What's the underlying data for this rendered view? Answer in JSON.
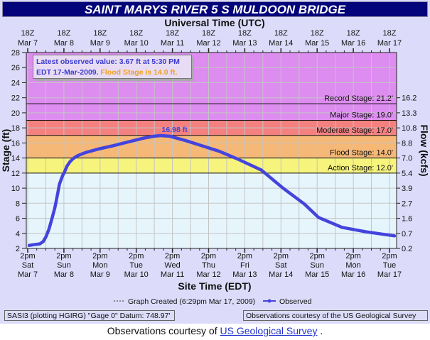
{
  "title": "SAINT MARYS RIVER 5 S MULDOON BRIDGE",
  "info": {
    "line1": "Latest observed value: 3.67 ft at 5:30 PM",
    "line2a": "EDT 17-Mar-2009.",
    "line2b": "Flood Stage is 14.0 ft."
  },
  "legend": {
    "created": "Graph Created (6:29pm Mar 17, 2009)",
    "observed": "Observed"
  },
  "footer": {
    "left": "SASI3 (plotting HGIRG)  \"Gage 0\" Datum: 748.97'",
    "right": "Observations courtesy of the  US Geological Survey"
  },
  "bottom": {
    "prefix": "Observations courtesy of ",
    "link": "US Geological Survey",
    "suffix": " ."
  },
  "chart_data": {
    "type": "line",
    "title": "SAINT MARYS RIVER 5 S MULDOON BRIDGE",
    "top_xlabel": "Universal Time (UTC)",
    "xlabel": "Site Time (EDT)",
    "ylabel": "Stage (ft)",
    "y2label": "Flow (kcfs)",
    "ylim": [
      2,
      28
    ],
    "x_unit": "hours since 2pm EDT Mar 7, 2009",
    "xlim": [
      -1,
      244.7
    ],
    "yticks": [
      2,
      4,
      6,
      8,
      10,
      12,
      14,
      16,
      18,
      20,
      22,
      24,
      26,
      28
    ],
    "y2ticks": [
      {
        "stage": 2,
        "label": "0.2"
      },
      {
        "stage": 4,
        "label": "0.7"
      },
      {
        "stage": 6,
        "label": "1.6"
      },
      {
        "stage": 8,
        "label": "2.7"
      },
      {
        "stage": 10,
        "label": "3.9"
      },
      {
        "stage": 12,
        "label": "5.4"
      },
      {
        "stage": 14,
        "label": "7.0"
      },
      {
        "stage": 16,
        "label": "8.8"
      },
      {
        "stage": 18,
        "label": "10.8"
      },
      {
        "stage": 20,
        "label": "13.3"
      },
      {
        "stage": 22,
        "label": "16.2"
      }
    ],
    "top_ticks": [
      [
        "18Z",
        "Mar 7"
      ],
      [
        "18Z",
        "Mar 8"
      ],
      [
        "18Z",
        "Mar 9"
      ],
      [
        "18Z",
        "Mar 10"
      ],
      [
        "18Z",
        "Mar 11"
      ],
      [
        "18Z",
        "Mar 12"
      ],
      [
        "18Z",
        "Mar 13"
      ],
      [
        "18Z",
        "Mar 14"
      ],
      [
        "18Z",
        "Mar 15"
      ],
      [
        "18Z",
        "Mar 16"
      ],
      [
        "18Z",
        "Mar 17"
      ]
    ],
    "bottom_ticks": [
      [
        "2pm",
        "Sat",
        "Mar 7"
      ],
      [
        "2pm",
        "Sun",
        "Mar 8"
      ],
      [
        "2pm",
        "Mon",
        "Mar 9"
      ],
      [
        "2pm",
        "Tue",
        "Mar 10"
      ],
      [
        "2pm",
        "Wed",
        "Mar 11"
      ],
      [
        "2pm",
        "Thu",
        "Mar 12"
      ],
      [
        "2pm",
        "Fri",
        "Mar 13"
      ],
      [
        "2pm",
        "Sat",
        "Mar 14"
      ],
      [
        "2pm",
        "Sun",
        "Mar 15"
      ],
      [
        "2pm",
        "Mon",
        "Mar 16"
      ],
      [
        "2pm",
        "Tue",
        "Mar 17"
      ]
    ],
    "stages": [
      {
        "name": "record",
        "label": "Record Stage: 21.2'",
        "value": 21.2,
        "color": "#dd8cf0"
      },
      {
        "name": "major",
        "label": "Major Stage: 19.0'",
        "value": 19.0,
        "color": "#dd8cf0"
      },
      {
        "name": "moderate",
        "label": "Moderate Stage: 17.0'",
        "value": 17.0,
        "color": "#f48080"
      },
      {
        "name": "flood",
        "label": "Flood Stage: 14.0'",
        "value": 14.0,
        "color": "#f6b876"
      },
      {
        "name": "action",
        "label": "Action Stage: 12.0'",
        "value": 12.0,
        "color": "#f6f47c"
      }
    ],
    "below_color": "#e6f5fc",
    "peak": {
      "label": "16.98 ft",
      "x": 88,
      "y": 16.98
    },
    "series": [
      {
        "name": "Observed",
        "color": "#4444dd",
        "points": [
          [
            1,
            2.4
          ],
          [
            4,
            2.5
          ],
          [
            8,
            2.6
          ],
          [
            10.2,
            2.9
          ],
          [
            12,
            3.5
          ],
          [
            14,
            4.5
          ],
          [
            16,
            5.9
          ],
          [
            18,
            7.4
          ],
          [
            20,
            9.4
          ],
          [
            21,
            10.5
          ],
          [
            23,
            11.6
          ],
          [
            24.3,
            12.1
          ],
          [
            26,
            12.9
          ],
          [
            28,
            13.5
          ],
          [
            30,
            13.9
          ],
          [
            33,
            14.3
          ],
          [
            38,
            14.7
          ],
          [
            47,
            15.2
          ],
          [
            56,
            15.6
          ],
          [
            66,
            16.1
          ],
          [
            76,
            16.6
          ],
          [
            84,
            16.9
          ],
          [
            88,
            16.98
          ],
          [
            94,
            16.9
          ],
          [
            105,
            16.3
          ],
          [
            116,
            15.6
          ],
          [
            127,
            14.9
          ],
          [
            140,
            13.8
          ],
          [
            155,
            12.4
          ],
          [
            169.4,
            10.0
          ],
          [
            183.5,
            7.9
          ],
          [
            193,
            6.1
          ],
          [
            208.5,
            4.8
          ],
          [
            224.5,
            4.2
          ],
          [
            235,
            3.9
          ],
          [
            243.3,
            3.67
          ]
        ]
      }
    ]
  }
}
